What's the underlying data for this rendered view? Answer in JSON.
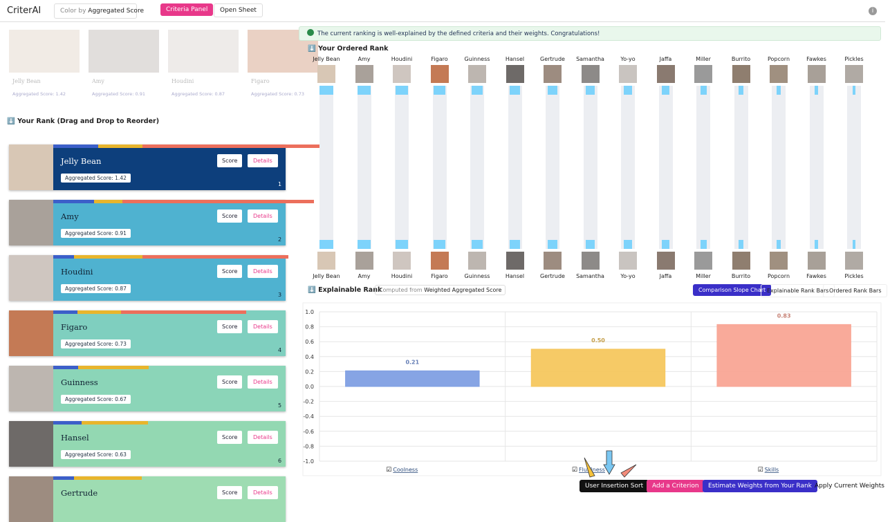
{
  "header": {
    "app_name": "CriterAI",
    "color_by_label": "Color by",
    "color_by_value": "Aggregated Score",
    "buttons": [
      "Criteria Panel",
      "Open Sheet"
    ]
  },
  "gallery": [
    {
      "name": "Jelly Bean",
      "score": "Aggregated Score: 1.42"
    },
    {
      "name": "Amy",
      "score": "Aggregated Score: 0.91"
    },
    {
      "name": "Houdini",
      "score": "Aggregated Score: 0.87"
    },
    {
      "name": "Figaro",
      "score": "Aggregated Score: 0.73"
    }
  ],
  "rank_panel": {
    "title": "Your Rank (Drag and Drop to Reorder)",
    "buttons": [
      "Score",
      "Details"
    ],
    "cards": [
      {
        "name": "Jelly Bean",
        "score": "Aggregated Score: 1.42",
        "rank": 1
      },
      {
        "name": "Amy",
        "score": "Aggregated Score: 0.91",
        "rank": 2
      },
      {
        "name": "Houdini",
        "score": "Aggregated Score: 0.87",
        "rank": 3
      },
      {
        "name": "Figaro",
        "score": "Aggregated Score: 0.73",
        "rank": 4
      },
      {
        "name": "Guinness",
        "score": "Aggregated Score: 0.67",
        "rank": 5
      },
      {
        "name": "Hansel",
        "score": "Aggregated Score: 0.63",
        "rank": 6
      },
      {
        "name": "Gertrude"
      }
    ]
  },
  "notice": "The current ranking is well-explained by the defined criteria and their weights. Congratulations!",
  "ordered_rank": {
    "title": "Your Ordered Rank",
    "names": [
      "Jelly Bean",
      "Amy",
      "Houdini",
      "Figaro",
      "Guinness",
      "Hansel",
      "Gertrude",
      "Samantha",
      "Yo-yo",
      "Jaffa",
      "Miller",
      "Burrito",
      "Popcorn",
      "Fawkes",
      "Pickles"
    ]
  },
  "explainable_rank": {
    "title": "Explainable Rank",
    "computed_from_label": "Computed from",
    "computed_from_value": "Weighted Aggregated Score",
    "tabs": [
      "Comparison Slope Chart",
      "Explainable Rank Bars",
      "Ordered Rank Bars"
    ]
  },
  "chart_data": {
    "type": "bar",
    "categories": [
      "Coolness",
      "Fluffiness",
      "Skills"
    ],
    "values": [
      0.21,
      0.5,
      0.83
    ],
    "value_labels": [
      "0.21",
      "0.50",
      "0.83"
    ],
    "colors": [
      "#7f9fe3",
      "#f6c75e",
      "#f9a595"
    ],
    "ylim": [
      -1,
      1
    ],
    "yticks": [
      {
        "value": -1,
        "label": "-1.0"
      },
      {
        "value": -0.8,
        "label": "-0.8"
      },
      {
        "value": -0.6,
        "label": "-0.6"
      },
      {
        "value": -0.4,
        "label": "-0.4"
      },
      {
        "value": -0.2,
        "label": "-0.2"
      },
      {
        "value": 0,
        "label": "0.0"
      },
      {
        "value": 0.2,
        "label": "0.2"
      },
      {
        "value": 0.4,
        "label": "0.4"
      },
      {
        "value": 0.6,
        "label": "0.6"
      },
      {
        "value": 0.8,
        "label": "0.8"
      },
      {
        "value": 1,
        "label": "1.0"
      }
    ],
    "grid": true
  },
  "actions": [
    "User Insertion Sort",
    "Add a Criterion",
    "Estimate Weights from Your Rank",
    "Apply Current Weights"
  ]
}
